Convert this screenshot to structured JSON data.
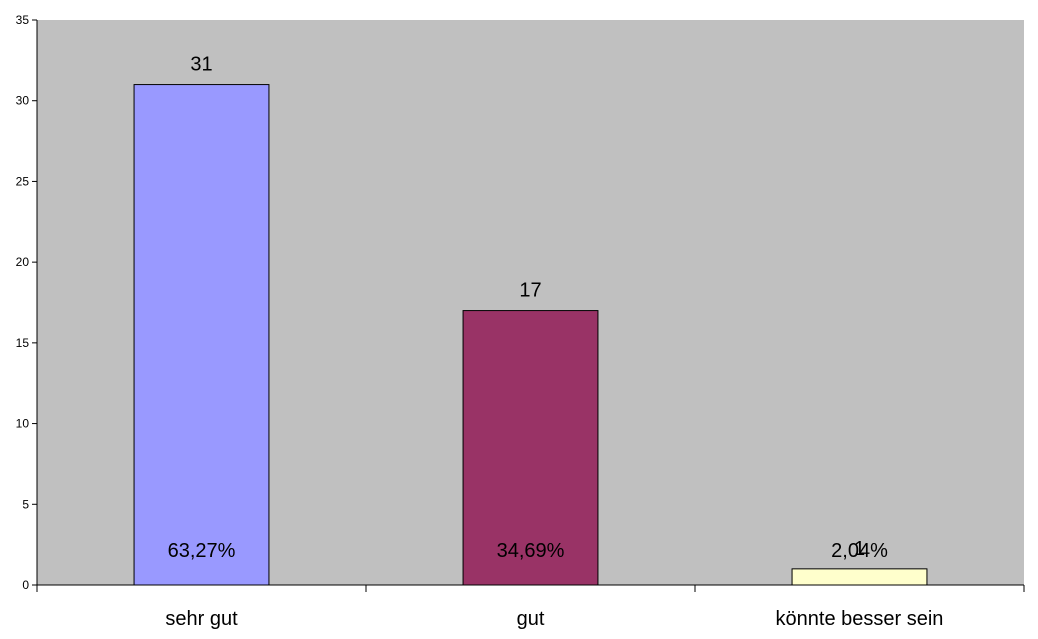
{
  "chart_data": {
    "type": "bar",
    "categories": [
      "sehr gut",
      "gut",
      "könnte besser sein"
    ],
    "values": [
      31,
      17,
      1
    ],
    "percent_labels": [
      "63,27%",
      "34,69%",
      "2,04%"
    ],
    "value_labels": [
      "31",
      "17",
      "1"
    ],
    "title": "",
    "xlabel": "",
    "ylabel": "",
    "ylim": [
      0,
      35
    ],
    "yticks": [
      {
        "value": 0,
        "label": "0"
      },
      {
        "value": 5,
        "label": "5"
      },
      {
        "value": 10,
        "label": "10"
      },
      {
        "value": 15,
        "label": "15"
      },
      {
        "value": 20,
        "label": "20"
      },
      {
        "value": 25,
        "label": "25"
      },
      {
        "value": 30,
        "label": "30"
      },
      {
        "value": 35,
        "label": "35"
      }
    ],
    "grid": false,
    "legend": "none",
    "colors": {
      "plot_background": "#C0C0C0",
      "bars": [
        "#9999FF",
        "#993366",
        "#FFFFCC"
      ],
      "bar_outline": "#000000",
      "axis": "#000000"
    }
  }
}
